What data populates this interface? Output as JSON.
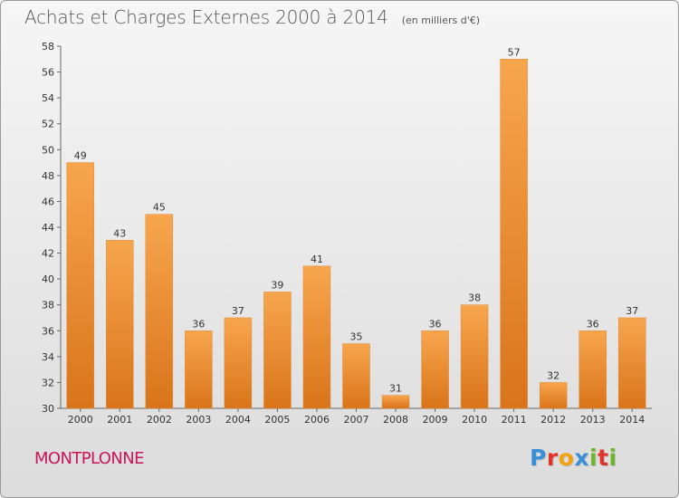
{
  "header": {
    "title": "Achats et Charges Externes 2000 à 2014",
    "subtitle": "(en milliers d'€)"
  },
  "footer": {
    "commune": "MONTPLONNE",
    "brand": "Proxiti",
    "brand_colors": [
      "#3a8fd6",
      "#e0332b",
      "#f2a30f",
      "#3a8fd6",
      "#6fb52c",
      "#e0332b",
      "#6fb52c"
    ]
  },
  "chart_data": {
    "type": "bar",
    "title": "Achats et Charges Externes 2000 à 2014",
    "subtitle": "(en milliers d'€)",
    "xlabel": "",
    "ylabel": "",
    "categories": [
      "2000",
      "2001",
      "2002",
      "2003",
      "2004",
      "2005",
      "2006",
      "2007",
      "2008",
      "2009",
      "2010",
      "2011",
      "2012",
      "2013",
      "2014"
    ],
    "values": [
      49,
      43,
      45,
      36,
      37,
      39,
      41,
      35,
      31,
      36,
      38,
      57,
      32,
      36,
      37
    ],
    "ylim": [
      30,
      58
    ],
    "yticks": [
      30,
      32,
      34,
      36,
      38,
      40,
      42,
      44,
      46,
      48,
      50,
      52,
      54,
      56,
      58
    ],
    "grid": false,
    "legend": "none",
    "bar_color_top": "#f7a64e",
    "bar_color_bottom": "#d9741a",
    "axis_color": "#666666"
  }
}
